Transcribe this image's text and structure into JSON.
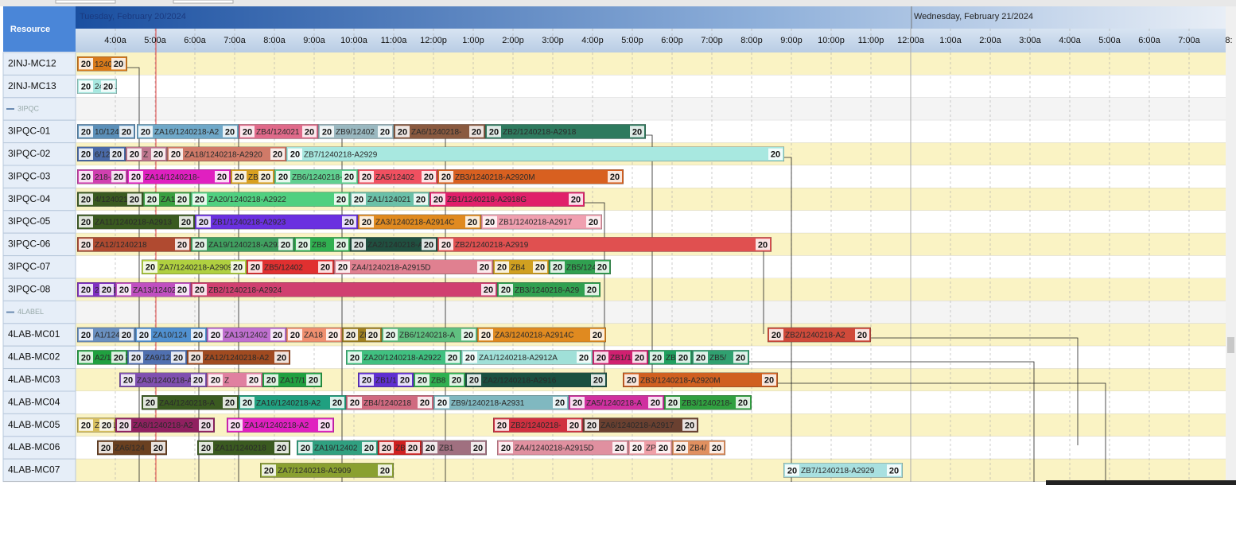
{
  "header": {
    "resource_title": "Resource",
    "dates": [
      "Tuesday, February 20/2024",
      "Wednesday, February 21/2024"
    ],
    "times": [
      "4:00a",
      "5:00a",
      "6:00a",
      "7:00a",
      "8:00a",
      "9:00a",
      "10:00a",
      "11:00a",
      "12:00p",
      "1:00p",
      "2:00p",
      "3:00p",
      "4:00p",
      "5:00p",
      "6:00p",
      "7:00p",
      "8:00p",
      "9:00p",
      "10:00p",
      "11:00p",
      "12:00a",
      "1:00a",
      "2:00a",
      "3:00a",
      "4:00a",
      "5:00a",
      "6:00a",
      "7:00a",
      "8:"
    ]
  },
  "badge": "20",
  "rows": [
    {
      "name": "2INJ-MC12",
      "tasks": [
        {
          "label": "1240218",
          "color": "#d97a1a"
        }
      ]
    },
    {
      "name": "2INJ-MC13",
      "tasks": [
        {
          "label": "24021",
          "color": "#a8e8e0"
        }
      ]
    },
    {
      "name": "3IPQC",
      "group": true,
      "tasks": []
    },
    {
      "name": "3IPQC-01",
      "tasks": [
        {
          "label": "10/124021",
          "color": "#5b8fb8"
        },
        {
          "label": "ZA16/1240218-A2",
          "color": "#6fa8c8"
        },
        {
          "label": "ZB4/124021",
          "color": "#e06a8a"
        },
        {
          "label": "ZB9/12402",
          "color": "#9ab8c0"
        },
        {
          "label": "ZA6/1240218-",
          "color": "#8a5a40"
        },
        {
          "label": "ZB2/1240218-A2918",
          "color": "#2e7a5e"
        }
      ]
    },
    {
      "name": "3IPQC-02",
      "tasks": [
        {
          "label": "6/12402",
          "color": "#4a6aa8"
        },
        {
          "label": "Z",
          "color": "#c07890"
        },
        {
          "label": "ZA18/1240218-A2920",
          "color": "#d07a68"
        },
        {
          "label": "ZB7/1240218-A2929",
          "color": "#a8e8e0"
        }
      ]
    },
    {
      "name": "3IPQC-03",
      "tasks": [
        {
          "label": "218-A2",
          "color": "#d040b0"
        },
        {
          "label": "ZA14/1240218-",
          "color": "#e020c0"
        },
        {
          "label": "ZB3/",
          "color": "#d8a020"
        },
        {
          "label": "ZB6/1240218-/",
          "color": "#60d090"
        },
        {
          "label": "ZA5/12402",
          "color": "#f05060"
        },
        {
          "label": "ZB3/1240218-A2920M",
          "color": "#d86020"
        }
      ]
    },
    {
      "name": "3IPQC-04",
      "tasks": [
        {
          "label": "4/1240218-A",
          "color": "#3a5a20"
        },
        {
          "label": "ZA1",
          "color": "#3aa040"
        },
        {
          "label": "ZA20/1240218-A2922",
          "color": "#50d080"
        },
        {
          "label": "ZA1/124021",
          "color": "#6ac0a8"
        },
        {
          "label": "ZB1/1240218-A2918G",
          "color": "#e0206a"
        }
      ]
    },
    {
      "name": "3IPQC-05",
      "tasks": [
        {
          "label": "ZA11/1240218-A2913",
          "color": "#3a5a20"
        },
        {
          "label": "ZB1/1240218-A2923",
          "color": "#6a30e0"
        },
        {
          "label": "ZA3/1240218-A2914C",
          "color": "#e08a20"
        },
        {
          "label": "ZB1/1240218-A2917",
          "color": "#f0a0b0"
        }
      ]
    },
    {
      "name": "3IPQC-06",
      "tasks": [
        {
          "label": "ZA12/1240218",
          "color": "#b04a30"
        },
        {
          "label": "ZA19/1240218-A292",
          "color": "#40a060"
        },
        {
          "label": "ZB8",
          "color": "#30b050"
        },
        {
          "label": "ZA2/1240218-A2",
          "color": "#205040"
        },
        {
          "label": "ZB2/1240218-A2919",
          "color": "#e05050"
        }
      ]
    },
    {
      "name": "3IPQC-07",
      "tasks": [
        {
          "label": "ZA7/1240218-A2909",
          "color": "#b0d040"
        },
        {
          "label": "ZB5/12402",
          "color": "#e03030"
        },
        {
          "label": "ZA4/1240218-A2915D",
          "color": "#e08090"
        },
        {
          "label": "ZB4",
          "color": "#d0a020"
        },
        {
          "label": "ZB5/124",
          "color": "#30a050"
        }
      ]
    },
    {
      "name": "3IPQC-08",
      "tasks": [
        {
          "label": "24021",
          "color": "#8030c0"
        },
        {
          "label": "ZA13/1240218",
          "color": "#c050c0"
        },
        {
          "label": "ZB2/1240218-A2924",
          "color": "#d04070"
        },
        {
          "label": "ZB3/1240218-A29",
          "color": "#30a050"
        }
      ]
    },
    {
      "name": "4LABEL",
      "group": true,
      "tasks": []
    },
    {
      "name": "4LAB-MC01",
      "tasks": [
        {
          "label": "A1/124021",
          "color": "#6a90c0"
        },
        {
          "label": "ZA10/124",
          "color": "#5090d0"
        },
        {
          "label": "ZA13/12402",
          "color": "#c070d0"
        },
        {
          "label": "ZA18",
          "color": "#f09070"
        },
        {
          "label": "ZB",
          "color": "#a08020"
        },
        {
          "label": "ZB6/1240218-A",
          "color": "#60c080"
        },
        {
          "label": "ZA3/1240218-A2914C",
          "color": "#e08a20"
        },
        {
          "label": "ZB2/1240218-A2",
          "color": "#d04a3a"
        }
      ]
    },
    {
      "name": "4LAB-MC02",
      "tasks": [
        {
          "label": "A2/12402",
          "color": "#20a040"
        },
        {
          "label": "ZA9/12",
          "color": "#5070b0"
        },
        {
          "label": "ZA12/1240218-A2",
          "color": "#a04a20"
        },
        {
          "label": "ZA20/1240218-A2922",
          "color": "#40c080"
        },
        {
          "label": "ZA1/1240218-A2912A",
          "color": "#a0e0d8"
        },
        {
          "label": "ZB1/1",
          "color": "#d02070"
        },
        {
          "label": "ZB2",
          "color": "#20a060"
        },
        {
          "label": "ZB5/",
          "color": "#30a070"
        }
      ]
    },
    {
      "name": "4LAB-MC03",
      "tasks": [
        {
          "label": "ZA3/1240218-A2",
          "color": "#8050b0"
        },
        {
          "label": "Z",
          "color": "#e080a0"
        },
        {
          "label": "ZA17/1",
          "color": "#20a040"
        },
        {
          "label": "ZB1/1",
          "color": "#6030d0"
        },
        {
          "label": "ZB8",
          "color": "#30b050"
        },
        {
          "label": "ZA2/1240218-A2916",
          "color": "#1a5040"
        },
        {
          "label": "ZB3/1240218-A2920M",
          "color": "#d06020"
        }
      ]
    },
    {
      "name": "4LAB-MC04",
      "tasks": [
        {
          "label": "ZA4/1240218-A",
          "color": "#3a5a20"
        },
        {
          "label": "ZA16/1240218-A2",
          "color": "#20a080"
        },
        {
          "label": "ZB4/1240218",
          "color": "#d06a80"
        },
        {
          "label": "ZB9/1240218-A2931",
          "color": "#80b8c0"
        },
        {
          "label": "ZA5/1240218-A",
          "color": "#d030a0"
        },
        {
          "label": "ZB3/1240218-",
          "color": "#30a040"
        }
      ]
    },
    {
      "name": "4LAB-MC05",
      "tasks": [
        {
          "label": "ZA5/1",
          "color": "#d8c060"
        },
        {
          "label": "ZA8/1240218-A2",
          "color": "#902060"
        },
        {
          "label": "ZA14/1240218-A2",
          "color": "#e020c0"
        },
        {
          "label": "ZB2/1240218-",
          "color": "#d03040"
        },
        {
          "label": "ZA6/1240218-A2917",
          "color": "#6a4030"
        }
      ]
    },
    {
      "name": "4LAB-MC06",
      "tasks": [
        {
          "label": "ZA6/124",
          "color": "#6a4020"
        },
        {
          "label": "ZA11/1240218",
          "color": "#3a5a20"
        },
        {
          "label": "ZA19/12402",
          "color": "#30a080"
        },
        {
          "label": "ZB5/12",
          "color": "#d02020"
        },
        {
          "label": "ZB1",
          "color": "#a07080"
        },
        {
          "label": "ZA4/1240218-A2915D",
          "color": "#e090a0"
        },
        {
          "label": "ZP",
          "color": "#f0a0a8"
        },
        {
          "label": "ZB4/",
          "color": "#e09060"
        }
      ]
    },
    {
      "name": "4LAB-MC07",
      "tasks": [
        {
          "label": "ZA7/1240218-A2909",
          "color": "#8aa030"
        },
        {
          "label": "ZB7/1240218-A2929",
          "color": "#a8e0e0"
        }
      ]
    }
  ]
}
